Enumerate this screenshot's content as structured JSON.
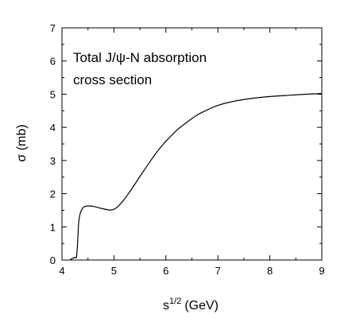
{
  "chart_data": {
    "type": "line",
    "title": "",
    "xlabel": "s",
    "xlabel_sup": "1/2",
    "xlabel_unit": "(GeV)",
    "ylabel": "σ (mb)",
    "xlim": [
      4,
      9
    ],
    "ylim": [
      0,
      7
    ],
    "xticks": [
      "4",
      "5",
      "6",
      "7",
      "8",
      "9"
    ],
    "yticks": [
      "0",
      "1",
      "2",
      "3",
      "4",
      "5",
      "6",
      "7"
    ],
    "annotation": [
      "Total J/ψ-N absorption",
      "cross section"
    ],
    "grid": false,
    "legend": "none",
    "series": [
      {
        "x": [
          4.15,
          4.2,
          4.25,
          4.28,
          4.3,
          4.32,
          4.35,
          4.4,
          4.45,
          4.5,
          4.6,
          4.7,
          4.8,
          4.9,
          4.95,
          5.0,
          5.05,
          5.1,
          5.2,
          5.3,
          5.4,
          5.5,
          5.6,
          5.7,
          5.8,
          5.9,
          6.0,
          6.2,
          6.4,
          6.6,
          6.8,
          7.0,
          7.2,
          7.5,
          7.8,
          8.0,
          8.3,
          8.6,
          9.0
        ],
        "y": [
          0.0,
          0.05,
          0.08,
          0.1,
          0.5,
          1.1,
          1.4,
          1.57,
          1.62,
          1.63,
          1.62,
          1.58,
          1.54,
          1.51,
          1.51,
          1.53,
          1.58,
          1.65,
          1.83,
          2.05,
          2.28,
          2.52,
          2.75,
          2.98,
          3.2,
          3.4,
          3.58,
          3.9,
          4.15,
          4.37,
          4.53,
          4.66,
          4.75,
          4.84,
          4.9,
          4.93,
          4.96,
          4.99,
          5.02
        ]
      }
    ]
  }
}
